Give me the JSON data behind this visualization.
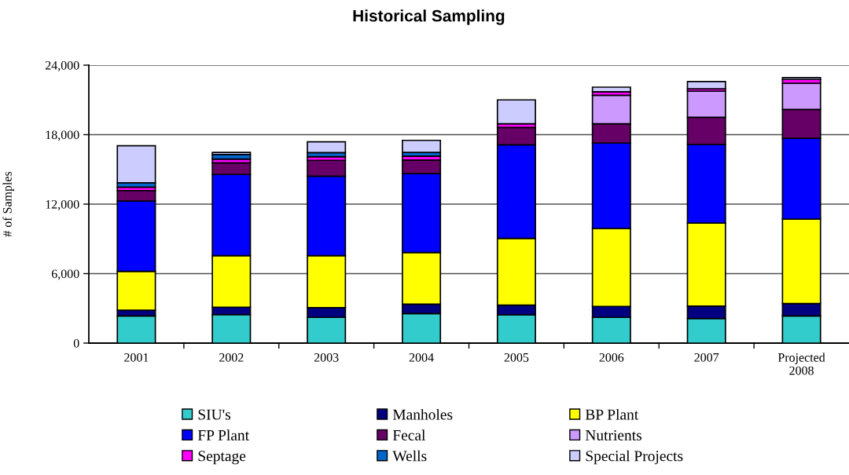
{
  "chart_data": {
    "type": "bar",
    "title": "Historical Sampling",
    "ylabel": "# of Samples",
    "categories": [
      "2001",
      "2002",
      "2003",
      "2004",
      "2005",
      "2006",
      "2007",
      "Projected\n2008"
    ],
    "stacked": true,
    "series": [
      {
        "name": "SIU's",
        "color": "#33cccc",
        "values": [
          2350,
          2460,
          2220,
          2550,
          2440,
          2220,
          2120,
          2350
        ]
      },
      {
        "name": "Manholes",
        "color": "#000080",
        "values": [
          500,
          640,
          850,
          820,
          840,
          950,
          1070,
          1060
        ]
      },
      {
        "name": "BP Plant",
        "color": "#ffff00",
        "values": [
          3340,
          4450,
          4480,
          4450,
          5760,
          6730,
          7180,
          7300
        ]
      },
      {
        "name": "FP Plant",
        "color": "#0000ff",
        "values": [
          6080,
          7010,
          6870,
          6820,
          8090,
          7370,
          6780,
          6980
        ]
      },
      {
        "name": "Fecal",
        "color": "#660066",
        "values": [
          900,
          1010,
          1360,
          1160,
          1490,
          1670,
          2350,
          2490
        ]
      },
      {
        "name": "Nutrients",
        "color": "#cc99ff",
        "values": [
          null,
          null,
          null,
          null,
          null,
          2460,
          2260,
          2260
        ]
      },
      {
        "name": "Septage",
        "color": "#ff00ff",
        "values": [
          300,
          320,
          310,
          340,
          320,
          300,
          200,
          320
        ]
      },
      {
        "name": "Wells",
        "color": "#0066cc",
        "values": [
          380,
          400,
          360,
          330,
          null,
          null,
          null,
          null
        ]
      },
      {
        "name": "Special Projects",
        "color": "#ccccff",
        "values": [
          3190,
          180,
          930,
          1040,
          2060,
          400,
          620,
          160
        ]
      }
    ],
    "ylim": [
      0,
      24000
    ],
    "yticks": [
      0,
      {
        "value": 6000,
        "label": "6,000"
      },
      {
        "value": 12000,
        "label": "12,000"
      },
      {
        "value": 18000,
        "label": "18,000"
      },
      {
        "value": 24000,
        "label": "24,000"
      }
    ],
    "grid": "y",
    "legend": "bottom"
  }
}
